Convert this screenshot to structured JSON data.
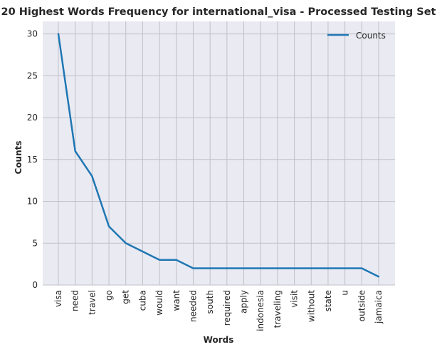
{
  "chart_data": {
    "type": "line",
    "title": "20 Highest Words Frequency for international_visa - Processed Testing Set",
    "xlabel": "Words",
    "ylabel": "Counts",
    "categories": [
      "visa",
      "need",
      "travel",
      "go",
      "get",
      "cuba",
      "would",
      "want",
      "needed",
      "south",
      "required",
      "apply",
      "indonesia",
      "traveling",
      "visit",
      "without",
      "state",
      "u",
      "outside",
      "jamaica"
    ],
    "series": [
      {
        "name": "Counts",
        "values": [
          30,
          16,
          13,
          7,
          5,
          4,
          3,
          3,
          2,
          2,
          2,
          2,
          2,
          2,
          2,
          2,
          2,
          2,
          2,
          1
        ]
      }
    ],
    "ylim": [
      0,
      31.5
    ],
    "yticks": [
      0,
      5,
      10,
      15,
      20,
      25,
      30
    ],
    "grid": true,
    "legend": "top-right",
    "colors": {
      "line": "#1f77b4",
      "background": "#eaeaf2",
      "grid": "#c0c0c8"
    }
  }
}
